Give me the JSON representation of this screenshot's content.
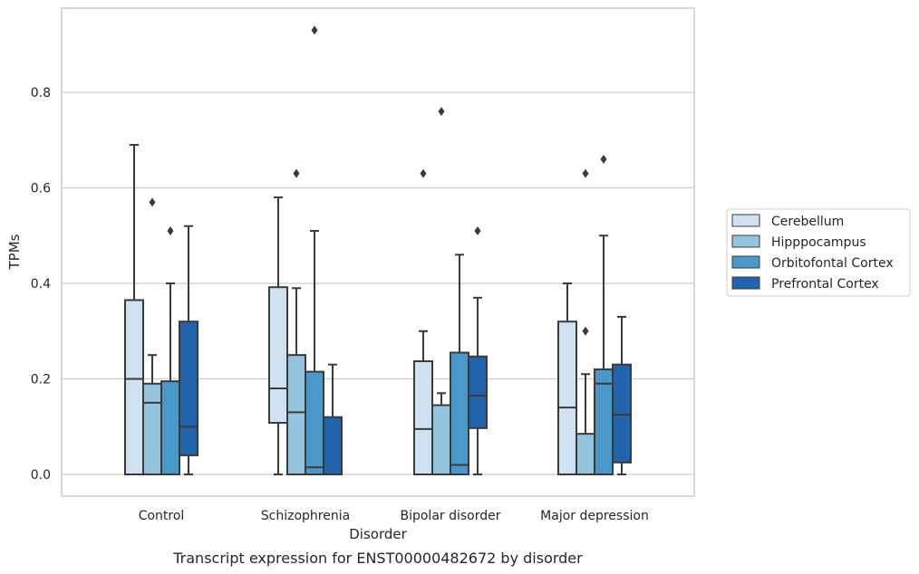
{
  "chart_data": {
    "type": "box",
    "caption": "Transcript expression for ENST00000482672 by disorder",
    "xlabel": "Disorder",
    "ylabel": "TPMs",
    "ylim": [
      -0.045,
      0.98
    ],
    "yticks": [
      "0.0",
      "0.2",
      "0.4",
      "0.6",
      "0.8"
    ],
    "grid": "horizontal",
    "legend_position": "right",
    "categories": [
      "Control",
      "Schizophrenia",
      "Bipolar disorder",
      "Major depression"
    ],
    "series": [
      {
        "name": "Cerebellum",
        "color": "#d0e1f2",
        "boxes": [
          {
            "whisker_low": 0.0,
            "q1": 0.0,
            "median": 0.2,
            "q3": 0.365,
            "whisker_high": 0.69,
            "outliers": []
          },
          {
            "whisker_low": 0.0,
            "q1": 0.108,
            "median": 0.18,
            "q3": 0.392,
            "whisker_high": 0.58,
            "outliers": []
          },
          {
            "whisker_low": 0.0,
            "q1": 0.0,
            "median": 0.095,
            "q3": 0.237,
            "whisker_high": 0.3,
            "outliers": [
              0.63
            ]
          },
          {
            "whisker_low": 0.0,
            "q1": 0.0,
            "median": 0.14,
            "q3": 0.32,
            "whisker_high": 0.4,
            "outliers": []
          }
        ]
      },
      {
        "name": "Hipppocampus",
        "color": "#94c4df",
        "boxes": [
          {
            "whisker_low": 0.0,
            "q1": 0.0,
            "median": 0.15,
            "q3": 0.19,
            "whisker_high": 0.25,
            "outliers": [
              0.57
            ]
          },
          {
            "whisker_low": 0.0,
            "q1": 0.0,
            "median": 0.13,
            "q3": 0.25,
            "whisker_high": 0.39,
            "outliers": [
              0.63
            ]
          },
          {
            "whisker_low": 0.0,
            "q1": 0.0,
            "median": 0.0,
            "q3": 0.145,
            "whisker_high": 0.17,
            "outliers": [
              0.76
            ]
          },
          {
            "whisker_low": 0.0,
            "q1": 0.0,
            "median": 0.0,
            "q3": 0.085,
            "whisker_high": 0.21,
            "outliers": [
              0.3,
              0.63
            ]
          }
        ]
      },
      {
        "name": "Orbitofontal Cortex",
        "color": "#4a98c9",
        "boxes": [
          {
            "whisker_low": 0.0,
            "q1": 0.0,
            "median": 0.0,
            "q3": 0.195,
            "whisker_high": 0.4,
            "outliers": [
              0.51
            ]
          },
          {
            "whisker_low": 0.0,
            "q1": 0.0,
            "median": 0.015,
            "q3": 0.215,
            "whisker_high": 0.51,
            "outliers": [
              0.93
            ]
          },
          {
            "whisker_low": 0.0,
            "q1": 0.0,
            "median": 0.02,
            "q3": 0.255,
            "whisker_high": 0.46,
            "outliers": []
          },
          {
            "whisker_low": 0.0,
            "q1": 0.0,
            "median": 0.19,
            "q3": 0.22,
            "whisker_high": 0.5,
            "outliers": [
              0.66
            ]
          }
        ]
      },
      {
        "name": "Prefrontal Cortex",
        "color": "#2164ab",
        "boxes": [
          {
            "whisker_low": 0.0,
            "q1": 0.04,
            "median": 0.1,
            "q3": 0.32,
            "whisker_high": 0.52,
            "outliers": []
          },
          {
            "whisker_low": 0.0,
            "q1": 0.0,
            "median": 0.0,
            "q3": 0.12,
            "whisker_high": 0.23,
            "outliers": []
          },
          {
            "whisker_low": 0.0,
            "q1": 0.097,
            "median": 0.165,
            "q3": 0.247,
            "whisker_high": 0.37,
            "outliers": [
              0.51
            ]
          },
          {
            "whisker_low": 0.0,
            "q1": 0.025,
            "median": 0.125,
            "q3": 0.23,
            "whisker_high": 0.33,
            "outliers": []
          }
        ]
      }
    ]
  }
}
